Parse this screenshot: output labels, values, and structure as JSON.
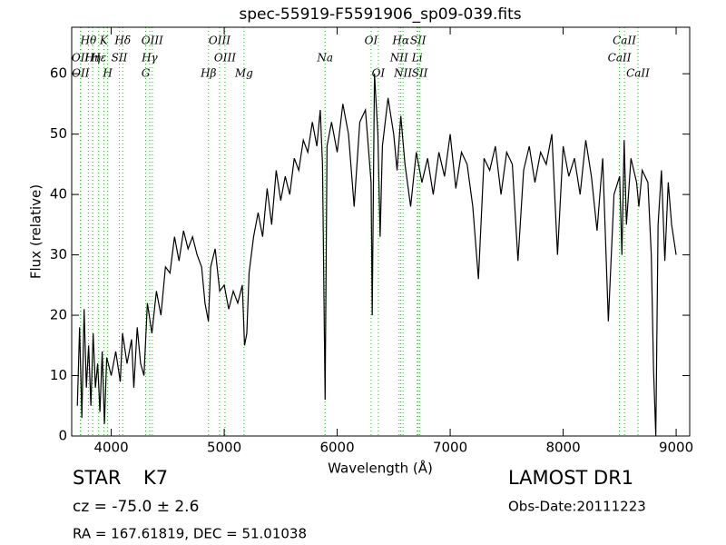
{
  "chart_data": {
    "type": "line",
    "title": "spec-55919-F5591906_sp09-039.fits",
    "x_label": "Wavelength (Å)",
    "y_label": "Flux (relative)",
    "xlim": [
      3650,
      9120
    ],
    "ylim": [
      0,
      67.7
    ],
    "xticks": [
      4000,
      5000,
      6000,
      7000,
      8000,
      9000
    ],
    "yticks": [
      0,
      10,
      20,
      30,
      40,
      50,
      60
    ],
    "line_color": "#000000",
    "marker_line_color": "#33aa33",
    "x": [
      3700,
      3720,
      3740,
      3760,
      3780,
      3800,
      3820,
      3840,
      3860,
      3880,
      3900,
      3920,
      3940,
      3960,
      4000,
      4040,
      4080,
      4100,
      4140,
      4180,
      4200,
      4230,
      4260,
      4290,
      4320,
      4360,
      4400,
      4440,
      4480,
      4520,
      4560,
      4600,
      4640,
      4680,
      4720,
      4760,
      4800,
      4830,
      4860,
      4880,
      4920,
      4960,
      5000,
      5040,
      5080,
      5120,
      5160,
      5180,
      5200,
      5220,
      5260,
      5300,
      5340,
      5380,
      5420,
      5460,
      5500,
      5540,
      5580,
      5620,
      5660,
      5700,
      5740,
      5780,
      5820,
      5850,
      5870,
      5893,
      5910,
      5950,
      6000,
      6050,
      6100,
      6150,
      6200,
      6250,
      6300,
      6310,
      6330,
      6360,
      6380,
      6400,
      6450,
      6500,
      6530,
      6563,
      6600,
      6650,
      6700,
      6750,
      6800,
      6850,
      6900,
      6950,
      7000,
      7050,
      7100,
      7150,
      7200,
      7250,
      7300,
      7350,
      7400,
      7450,
      7500,
      7550,
      7600,
      7650,
      7700,
      7750,
      7800,
      7850,
      7900,
      7950,
      8000,
      8050,
      8100,
      8150,
      8200,
      8250,
      8300,
      8350,
      8400,
      8450,
      8500,
      8520,
      8540,
      8560,
      8600,
      8650,
      8670,
      8700,
      8750,
      8780,
      8800,
      8820,
      8840,
      8870,
      8900,
      8930,
      8960,
      9000
    ],
    "series": [
      {
        "values": [
          5,
          18,
          3,
          21,
          8,
          15,
          5,
          17,
          8,
          12,
          4,
          14,
          2,
          13,
          10,
          14,
          9,
          17,
          12,
          16,
          8,
          18,
          12,
          10,
          22,
          17,
          24,
          20,
          28,
          27,
          33,
          29,
          34,
          31,
          33,
          30,
          28,
          22,
          19,
          28,
          31,
          24,
          25,
          21,
          24,
          22,
          25,
          15,
          17,
          27,
          33,
          37,
          33,
          41,
          35,
          44,
          39,
          43,
          40,
          46,
          44,
          49,
          47,
          52,
          48,
          54,
          45,
          6,
          48,
          52,
          47,
          55,
          50,
          38,
          52,
          54,
          42,
          20,
          60,
          50,
          33,
          48,
          56,
          50,
          44,
          53,
          45,
          38,
          47,
          42,
          46,
          40,
          47,
          43,
          50,
          41,
          47,
          45,
          38,
          26,
          46,
          44,
          48,
          40,
          47,
          45,
          29,
          44,
          48,
          42,
          47,
          45,
          50,
          30,
          48,
          43,
          46,
          40,
          49,
          43,
          34,
          46,
          19,
          40,
          43,
          30,
          49,
          35,
          46,
          42,
          38,
          44,
          42,
          30,
          11,
          0,
          35,
          44,
          29,
          42,
          35,
          30
        ]
      }
    ],
    "line_labels": [
      [
        {
          "label": "Hθ",
          "wavelength": 3798
        },
        {
          "label": "K",
          "wavelength": 3934
        },
        {
          "label": "Hδ",
          "wavelength": 4102
        },
        {
          "label": "OIII",
          "wavelength": 4363
        },
        {
          "label": "OIII",
          "wavelength": 4959
        },
        {
          "label": "OI",
          "wavelength": 6300
        },
        {
          "label": "Hα",
          "wavelength": 6563
        },
        {
          "label": "SII",
          "wavelength": 6716
        },
        {
          "label": "CaII",
          "wavelength": 8542
        }
      ],
      [
        {
          "label": "OII",
          "wavelength": 3727
        },
        {
          "label": "Hη",
          "wavelength": 3835
        },
        {
          "label": "Hε",
          "wavelength": 3889
        },
        {
          "label": "SII",
          "wavelength": 4072
        },
        {
          "label": "Hγ",
          "wavelength": 4340
        },
        {
          "label": "OIII",
          "wavelength": 5007
        },
        {
          "label": "Na",
          "wavelength": 5893
        },
        {
          "label": "NII",
          "wavelength": 6548
        },
        {
          "label": "Li",
          "wavelength": 6708
        },
        {
          "label": "CaII",
          "wavelength": 8498
        }
      ],
      [
        {
          "label": "OII",
          "wavelength": 3729
        },
        {
          "label": "H",
          "wavelength": 3968
        },
        {
          "label": "G",
          "wavelength": 4305
        },
        {
          "label": "Hβ",
          "wavelength": 4861
        },
        {
          "label": "Mg",
          "wavelength": 5175
        },
        {
          "label": "OI",
          "wavelength": 6364
        },
        {
          "label": "NII",
          "wavelength": 6583
        },
        {
          "label": "SII",
          "wavelength": 6731
        },
        {
          "label": "CaII",
          "wavelength": 8662
        }
      ]
    ]
  },
  "info": {
    "class": "STAR",
    "subclass": "K7",
    "survey": "LAMOST DR1",
    "cz": "cz = -75.0 ± 2.6",
    "obs_date": "Obs-Date:20111223",
    "coords": "RA = 167.61819, DEC = 51.01038"
  }
}
